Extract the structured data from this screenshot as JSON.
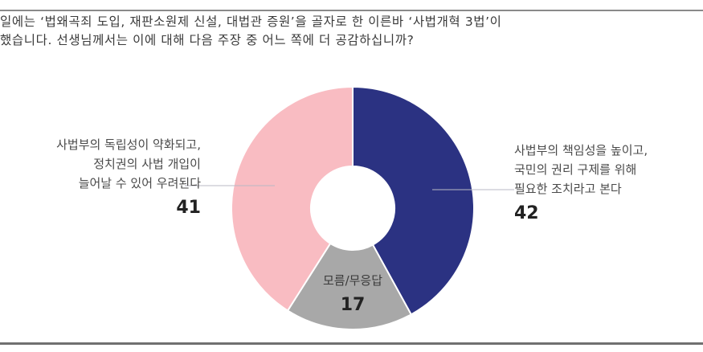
{
  "question": {
    "line1": "일에는 ‘법왜곡죄 도입, 재판소원제 신설, 대법관 증원’을 골자로 한 이른바 ‘사법개혁 3법’이 ",
    "line2": "했습니다. 선생님께서는 이에 대해 다음 주장 중 어느 쪽에 더 공감하십니까?"
  },
  "chart_data": {
    "type": "pie",
    "subtype": "donut",
    "title": "",
    "start_angle_deg": 0,
    "direction": "clockwise",
    "categories": [
      "사법부의 책임성을 높이고, 국민의 권리 구제를 위해 필요한 조치라고 본다",
      "모름/무응답",
      "사법부의 독립성이 약화되고, 정치권의 사법 개입이 늘어날 수 있어 우려된다"
    ],
    "values": [
      42,
      17,
      41
    ],
    "colors": [
      "#2b3282",
      "#a8a8a8",
      "#f9bcc2"
    ],
    "legend": "none (direct labels)"
  },
  "labels": {
    "left": {
      "lines": [
        "사법부의 독립성이 약화되고,",
        "정치권의 사법 개입이",
        "늘어날 수 있어 우려된다"
      ],
      "value": "41"
    },
    "right": {
      "lines": [
        "사법부의 책임성을 높이고,",
        "국민의 권리 구제를 위해",
        "필요한 조치라고 본다"
      ],
      "value": "42"
    },
    "center": {
      "text": "모름/무응답",
      "value": "17"
    }
  },
  "colors": {
    "navy": "#2b3282",
    "pink": "#f9bcc2",
    "gray": "#a8a8a8",
    "leader": "#b9b9c4",
    "rule": "#7a7a7a"
  }
}
